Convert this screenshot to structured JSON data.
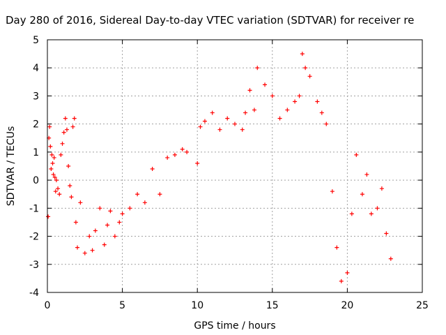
{
  "chart_data": {
    "type": "scatter",
    "title": "Day 280 of 2016, Sidereal Day-to-day VTEC variation (SDTVAR) for receiver re",
    "xlabel": "GPS time / hours",
    "ylabel": "SDTVAR / TECUs",
    "xlim": [
      0,
      25
    ],
    "ylim": [
      -4,
      5
    ],
    "xticks": [
      "0",
      "5",
      "10",
      "15",
      "20",
      "25"
    ],
    "yticks": [
      "-4",
      "-3",
      "-2",
      "-1",
      "0",
      "1",
      "2",
      "3",
      "4",
      "5"
    ],
    "grid": true,
    "legend": "none",
    "marker": "+",
    "color": "#ff0000",
    "series": [
      {
        "name": "",
        "x": [
          0.05,
          0.1,
          0.15,
          0.2,
          0.25,
          0.3,
          0.35,
          0.4,
          0.45,
          0.5,
          0.55,
          0.6,
          0.7,
          0.8,
          0.9,
          1.0,
          1.1,
          1.2,
          1.3,
          1.4,
          1.5,
          1.6,
          1.7,
          1.8,
          1.9,
          2.0,
          2.2,
          2.5,
          2.8,
          3.0,
          3.2,
          3.5,
          3.8,
          4.0,
          4.2,
          4.5,
          4.8,
          5.0,
          5.5,
          6.0,
          6.5,
          7.0,
          7.5,
          8.0,
          8.5,
          9.0,
          9.3,
          10.0,
          10.2,
          10.5,
          11.0,
          11.5,
          12.0,
          12.5,
          13.0,
          13.2,
          13.5,
          13.8,
          14.0,
          14.5,
          15.0,
          15.5,
          16.0,
          16.5,
          16.8,
          17.0,
          17.2,
          17.5,
          18.0,
          18.3,
          18.6,
          19.0,
          19.3,
          19.6,
          20.0,
          20.3,
          20.6,
          21.0,
          21.3,
          21.6,
          22.0,
          22.3,
          22.6,
          22.9
        ],
        "y": [
          -1.3,
          1.5,
          1.9,
          1.2,
          0.4,
          0.9,
          0.6,
          0.2,
          0.8,
          0.1,
          -0.4,
          0.0,
          -0.3,
          -0.5,
          0.9,
          1.3,
          1.7,
          2.2,
          1.8,
          0.5,
          -0.2,
          -0.6,
          1.9,
          2.2,
          -1.5,
          -2.4,
          -0.8,
          -2.6,
          -2.0,
          -2.5,
          -1.8,
          -1.0,
          -2.3,
          -1.6,
          -1.1,
          -2.0,
          -1.5,
          -1.2,
          -1.0,
          -0.5,
          -0.8,
          0.4,
          -0.5,
          0.8,
          0.9,
          1.1,
          1.0,
          0.6,
          1.9,
          2.1,
          2.4,
          1.8,
          2.2,
          2.0,
          1.8,
          2.4,
          3.2,
          2.5,
          4.0,
          3.4,
          3.0,
          2.2,
          2.5,
          2.8,
          3.0,
          4.5,
          4.0,
          3.7,
          2.8,
          2.4,
          2.0,
          -0.4,
          -2.4,
          -3.6,
          -3.3,
          -1.2,
          0.9,
          -0.5,
          0.2,
          -1.2,
          -1.0,
          -0.3,
          -1.9,
          -2.8
        ]
      }
    ]
  }
}
